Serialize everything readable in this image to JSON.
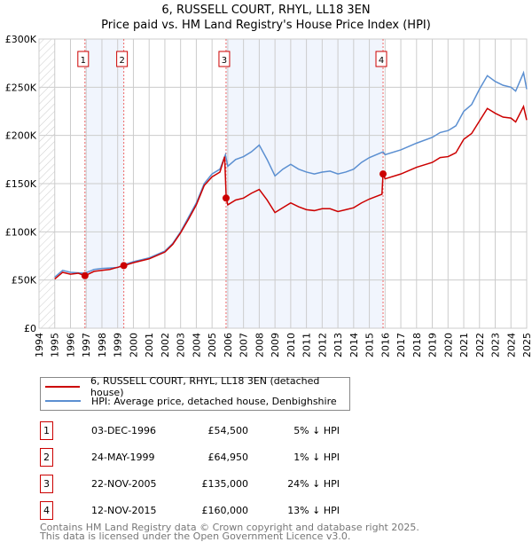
{
  "chart_data": {
    "type": "line",
    "title": "6, RUSSELL COURT, RHYL, LL18 3EN",
    "subtitle": "Price paid vs. HM Land Registry's House Price Index (HPI)",
    "xlim": [
      1994,
      2025
    ],
    "ylim": [
      0,
      300000
    ],
    "x_ticks": [
      "1994",
      "1995",
      "1996",
      "1997",
      "1998",
      "1999",
      "2000",
      "2001",
      "2002",
      "2003",
      "2004",
      "2005",
      "2006",
      "2007",
      "2008",
      "2009",
      "2010",
      "2011",
      "2012",
      "2013",
      "2014",
      "2015",
      "2016",
      "2017",
      "2018",
      "2019",
      "2020",
      "2021",
      "2022",
      "2023",
      "2024",
      "2025"
    ],
    "y_ticks": [
      {
        "v": 0,
        "label": "£0"
      },
      {
        "v": 50000,
        "label": "£50K"
      },
      {
        "v": 100000,
        "label": "£100K"
      },
      {
        "v": 150000,
        "label": "£150K"
      },
      {
        "v": 200000,
        "label": "£200K"
      },
      {
        "v": 250000,
        "label": "£250K"
      },
      {
        "v": 300000,
        "label": "£300K"
      }
    ],
    "grid": true,
    "series": [
      {
        "name": "6, RUSSELL COURT, RHYL, LL18 3EN (detached house)",
        "color": "#cc0000",
        "x": [
          1995,
          1995.5,
          1996,
          1996.5,
          1996.92,
          1997.5,
          1998,
          1998.5,
          1999.4,
          2000,
          2001,
          2002,
          2002.5,
          2003,
          2003.5,
          2004,
          2004.5,
          2005,
          2005.5,
          2005.8,
          2005.9,
          2006,
          2006.5,
          2007,
          2007.5,
          2008,
          2008.5,
          2009,
          2009.5,
          2010,
          2010.5,
          2011,
          2011.5,
          2012,
          2012.5,
          2013,
          2013.5,
          2014,
          2014.5,
          2015,
          2015.8,
          2015.87,
          2016,
          2017,
          2018,
          2019,
          2019.5,
          2020,
          2020.5,
          2021,
          2021.5,
          2022,
          2022.5,
          2023,
          2023.5,
          2024,
          2024.3,
          2024.8,
          2025
        ],
        "y": [
          51000,
          58000,
          56000,
          57000,
          54500,
          59000,
          60000,
          61000,
          64950,
          68000,
          72000,
          79000,
          87000,
          99000,
          113000,
          128000,
          148000,
          157000,
          162000,
          178000,
          135000,
          128000,
          133000,
          135000,
          140000,
          144000,
          133000,
          120000,
          125000,
          130000,
          126000,
          123000,
          122000,
          124000,
          124000,
          121000,
          123000,
          125000,
          130000,
          134000,
          139000,
          160000,
          155000,
          160000,
          167000,
          172000,
          177000,
          178000,
          182000,
          196000,
          202000,
          215000,
          228000,
          223000,
          219000,
          218000,
          214000,
          230000,
          216000
        ]
      },
      {
        "name": "HPI: Average price, detached house, Denbighshire",
        "color": "#5b8fd1",
        "x": [
          1995,
          1995.5,
          1996,
          1996.92,
          1997.5,
          1998,
          1999,
          1999.4,
          2000,
          2001,
          2002,
          2002.5,
          2003,
          2003.5,
          2004,
          2004.5,
          2005,
          2005.5,
          2005.85,
          2006,
          2006.5,
          2007,
          2007.5,
          2008,
          2008.5,
          2009,
          2009.5,
          2010,
          2010.5,
          2011,
          2011.5,
          2012,
          2012.5,
          2013,
          2013.5,
          2014,
          2014.5,
          2015,
          2015.87,
          2016,
          2017,
          2018,
          2019,
          2019.5,
          2020,
          2020.5,
          2021,
          2021.5,
          2022,
          2022.5,
          2023,
          2023.5,
          2024,
          2024.3,
          2024.8,
          2025
        ],
        "y": [
          53000,
          60000,
          58000,
          57000,
          61000,
          62000,
          63000,
          66000,
          69000,
          73000,
          80000,
          88000,
          100000,
          115000,
          130000,
          150000,
          160000,
          165000,
          180000,
          168000,
          175000,
          178000,
          183000,
          190000,
          175000,
          158000,
          165000,
          170000,
          165000,
          162000,
          160000,
          162000,
          163000,
          160000,
          162000,
          165000,
          172000,
          177000,
          183000,
          180000,
          185000,
          192000,
          198000,
          203000,
          205000,
          210000,
          225000,
          232000,
          248000,
          262000,
          256000,
          252000,
          250000,
          246000,
          265000,
          248000
        ]
      }
    ],
    "sales": [
      {
        "n": "1",
        "date": "03-DEC-1996",
        "x": 1996.92,
        "price": "£54,500",
        "value": 54500,
        "hpi": "5% ↓ HPI"
      },
      {
        "n": "2",
        "date": "24-MAY-1999",
        "x": 1999.39,
        "price": "£64,950",
        "value": 64950,
        "hpi": "1% ↓ HPI"
      },
      {
        "n": "3",
        "date": "22-NOV-2005",
        "x": 2005.89,
        "price": "£135,000",
        "value": 135000,
        "hpi": "24% ↓ HPI"
      },
      {
        "n": "4",
        "date": "12-NOV-2015",
        "x": 2015.87,
        "price": "£160,000",
        "value": 160000,
        "hpi": "13% ↓ HPI"
      }
    ],
    "shaded_ranges": [
      [
        1996.92,
        1999.39
      ],
      [
        2005.89,
        2015.87
      ]
    ],
    "legend_position": "below"
  },
  "footer": {
    "line1": "Contains HM Land Registry data © Crown copyright and database right 2025.",
    "line2": "This data is licensed under the Open Government Licence v3.0."
  }
}
